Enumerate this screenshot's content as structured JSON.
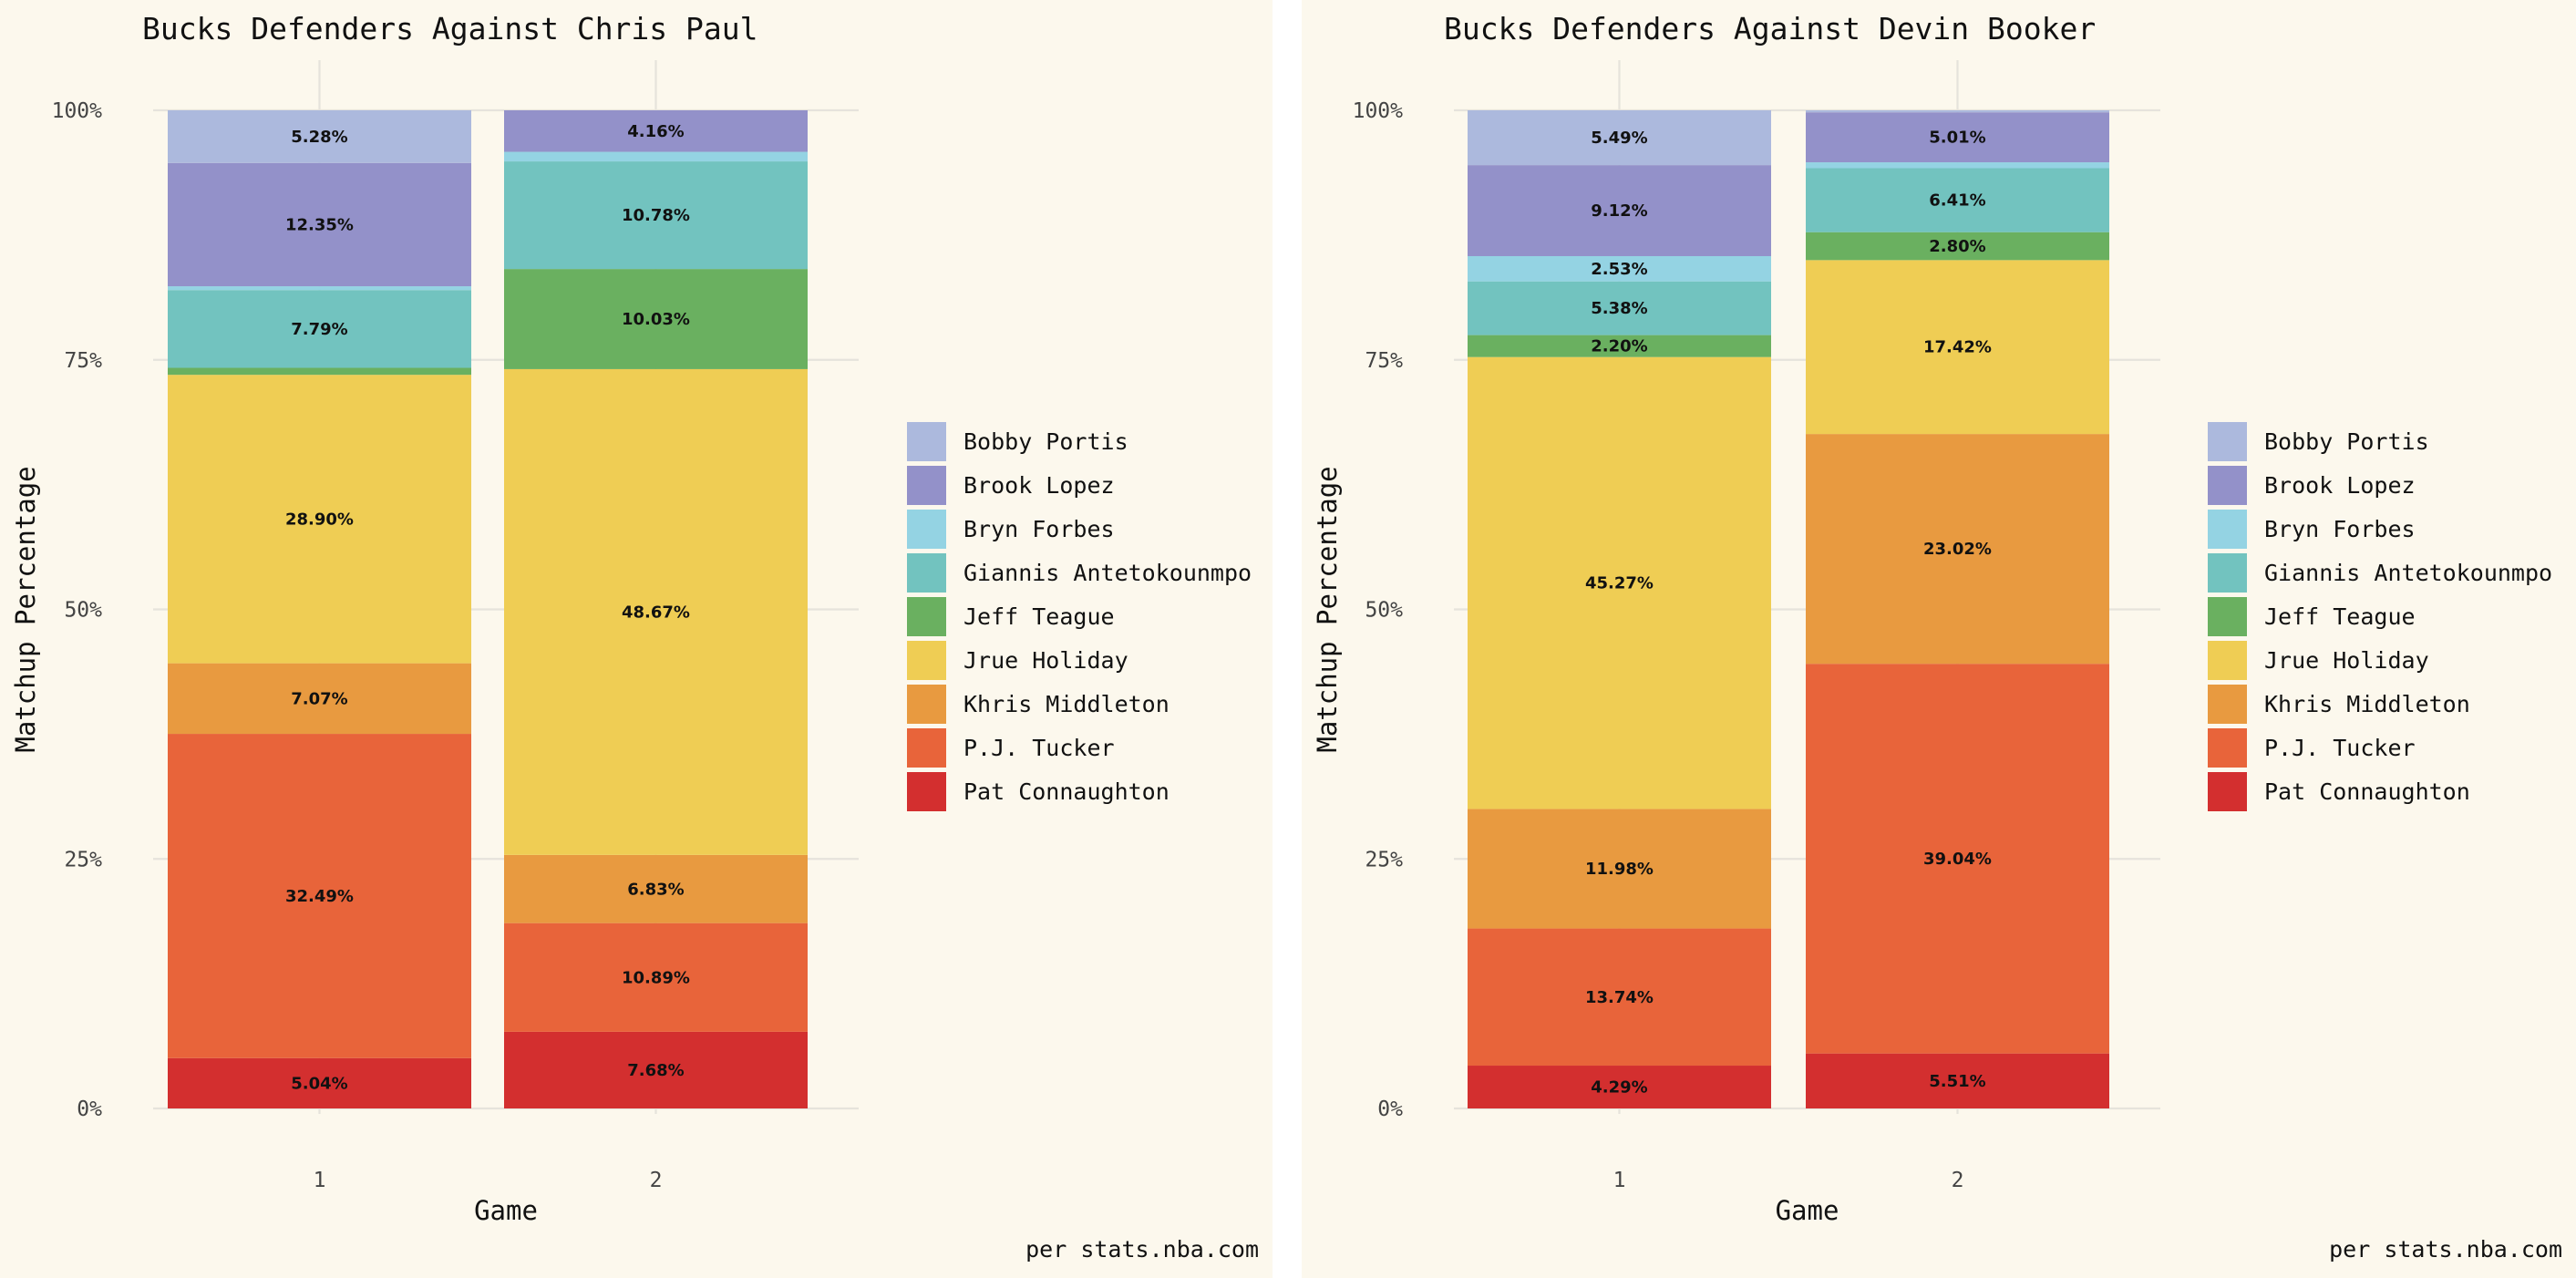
{
  "chart_data": [
    {
      "type": "bar",
      "stacked": true,
      "title": "Bucks Defenders Against Chris Paul",
      "xlabel": "Game",
      "ylabel": "Matchup Percentage",
      "categories": [
        "1",
        "2"
      ],
      "ylim": [
        0,
        100
      ],
      "yticks": [
        "0%",
        "25%",
        "50%",
        "75%",
        "100%"
      ],
      "caption": "per stats.nba.com",
      "grid": true,
      "legend_position": "right",
      "series": [
        {
          "name": "Pat Connaughton",
          "color": "#d32f2f",
          "values": [
            5.04,
            7.68
          ],
          "labels": [
            "5.04%",
            "7.68%"
          ]
        },
        {
          "name": "P.J. Tucker",
          "color": "#e8643a",
          "values": [
            32.49,
            10.89
          ],
          "labels": [
            "32.49%",
            "10.89%"
          ]
        },
        {
          "name": "Khris Middleton",
          "color": "#e89a40",
          "values": [
            7.07,
            6.83
          ],
          "labels": [
            "7.07%",
            "6.83%"
          ]
        },
        {
          "name": "Jrue Holiday",
          "color": "#efcd54",
          "values": [
            28.9,
            48.67
          ],
          "labels": [
            "28.90%",
            "48.67%"
          ]
        },
        {
          "name": "Jeff Teague",
          "color": "#6ab060",
          "values": [
            0.7,
            10.03
          ],
          "labels": [
            "",
            "10.03%"
          ]
        },
        {
          "name": "Giannis Antetokounmpo",
          "color": "#72c3bf",
          "values": [
            7.79,
            10.78
          ],
          "labels": [
            "7.79%",
            "10.78%"
          ]
        },
        {
          "name": "Bryn Forbes",
          "color": "#94d3e3",
          "values": [
            0.38,
            0.96
          ],
          "labels": [
            "",
            ""
          ]
        },
        {
          "name": "Brook Lopez",
          "color": "#9391c9",
          "values": [
            12.35,
            4.16
          ],
          "labels": [
            "12.35%",
            "4.16%"
          ]
        },
        {
          "name": "Bobby Portis",
          "color": "#acb9dd",
          "values": [
            5.28,
            0.0
          ],
          "labels": [
            "5.28%",
            ""
          ]
        }
      ]
    },
    {
      "type": "bar",
      "stacked": true,
      "title": "Bucks Defenders Against Devin Booker",
      "xlabel": "Game",
      "ylabel": "Matchup Percentage",
      "categories": [
        "1",
        "2"
      ],
      "ylim": [
        0,
        100
      ],
      "yticks": [
        "0%",
        "25%",
        "50%",
        "75%",
        "100%"
      ],
      "caption": "per stats.nba.com",
      "grid": true,
      "legend_position": "right",
      "series": [
        {
          "name": "Pat Connaughton",
          "color": "#d32f2f",
          "values": [
            4.29,
            5.51
          ],
          "labels": [
            "4.29%",
            "5.51%"
          ]
        },
        {
          "name": "P.J. Tucker",
          "color": "#e8643a",
          "values": [
            13.74,
            39.04
          ],
          "labels": [
            "13.74%",
            "39.04%"
          ]
        },
        {
          "name": "Khris Middleton",
          "color": "#e89a40",
          "values": [
            11.98,
            23.02
          ],
          "labels": [
            "11.98%",
            "23.02%"
          ]
        },
        {
          "name": "Jrue Holiday",
          "color": "#efcd54",
          "values": [
            45.27,
            17.42
          ],
          "labels": [
            "45.27%",
            "17.42%"
          ]
        },
        {
          "name": "Jeff Teague",
          "color": "#6ab060",
          "values": [
            2.2,
            2.8
          ],
          "labels": [
            "2.20%",
            "2.80%"
          ]
        },
        {
          "name": "Giannis Antetokounmpo",
          "color": "#72c3bf",
          "values": [
            5.38,
            6.41
          ],
          "labels": [
            "5.38%",
            "6.41%"
          ]
        },
        {
          "name": "Bryn Forbes",
          "color": "#94d3e3",
          "values": [
            2.53,
            0.59
          ],
          "labels": [
            "2.53%",
            ""
          ]
        },
        {
          "name": "Brook Lopez",
          "color": "#9391c9",
          "values": [
            9.12,
            5.01
          ],
          "labels": [
            "9.12%",
            "5.01%"
          ]
        },
        {
          "name": "Bobby Portis",
          "color": "#acb9dd",
          "values": [
            5.49,
            0.2
          ],
          "labels": [
            "5.49%",
            ""
          ]
        }
      ]
    }
  ],
  "legend_order": [
    "Bobby Portis",
    "Brook Lopez",
    "Bryn Forbes",
    "Giannis Antetokounmpo",
    "Jeff Teague",
    "Jrue Holiday",
    "Khris Middleton",
    "P.J. Tucker",
    "Pat Connaughton"
  ]
}
